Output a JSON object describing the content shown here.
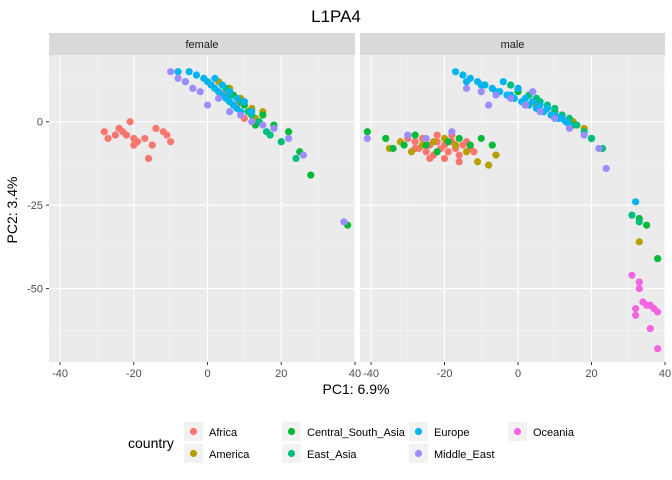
{
  "chart_data": {
    "type": "scatter",
    "title": "L1PA4",
    "xlabel": "PC1: 6.9%",
    "ylabel": "PC2: 3.4%",
    "xlim": [
      -43,
      40
    ],
    "ylim": [
      -72,
      20
    ],
    "x_ticks": [
      -40,
      -20,
      0,
      20,
      40
    ],
    "y_ticks": [
      0,
      -25,
      -50
    ],
    "grid": true,
    "legend_placement": "bottom",
    "legend_title": "country",
    "groups": [
      {
        "name": "Africa",
        "color": "#F8766D"
      },
      {
        "name": "America",
        "color": "#B79F00"
      },
      {
        "name": "Central_South_Asia",
        "color": "#00BA38"
      },
      {
        "name": "East_Asia",
        "color": "#00BF7D"
      },
      {
        "name": "Europe",
        "color": "#00B4F0"
      },
      {
        "name": "Middle_East",
        "color": "#9C8DFF"
      },
      {
        "name": "Oceania",
        "color": "#F564E3"
      }
    ],
    "panels": [
      {
        "label": "female",
        "points": {
          "Africa": [
            [
              -28,
              -3
            ],
            [
              -27,
              -5
            ],
            [
              -25,
              -4
            ],
            [
              -24,
              -2
            ],
            [
              -23,
              -3
            ],
            [
              -22,
              -4
            ],
            [
              -20,
              -5
            ],
            [
              -20,
              -7
            ],
            [
              -19,
              -6
            ],
            [
              -17,
              -5
            ],
            [
              -16,
              -11
            ],
            [
              -15,
              -7
            ],
            [
              -14,
              -2
            ],
            [
              -12,
              -3
            ],
            [
              -11,
              -4
            ],
            [
              -10,
              -6
            ],
            [
              -21,
              0
            ],
            [
              5,
              9
            ],
            [
              8,
              5
            ],
            [
              10,
              1
            ]
          ],
          "America": [
            [
              3,
              12
            ],
            [
              6,
              10
            ],
            [
              9,
              7
            ],
            [
              12,
              4
            ],
            [
              13,
              1
            ],
            [
              15,
              3
            ]
          ],
          "Central_South_Asia": [
            [
              28,
              -16
            ],
            [
              22,
              -3
            ],
            [
              18,
              -1
            ],
            [
              15,
              2
            ],
            [
              10,
              5
            ],
            [
              7,
              8
            ],
            [
              20,
              -6
            ],
            [
              25,
              -9
            ],
            [
              38,
              -31
            ],
            [
              13,
              -1
            ]
          ],
          "East_Asia": [
            [
              20,
              -6
            ],
            [
              17,
              -4
            ],
            [
              14,
              0
            ],
            [
              11,
              3
            ],
            [
              9,
              6
            ],
            [
              6,
              8
            ],
            [
              5,
              10
            ],
            [
              24,
              -11
            ],
            [
              16,
              -3
            ],
            [
              12,
              2
            ]
          ],
          "Europe": [
            [
              -5,
              15
            ],
            [
              -3,
              14
            ],
            [
              -1,
              13
            ],
            [
              0,
              12
            ],
            [
              1,
              11
            ],
            [
              2,
              10
            ],
            [
              3,
              9
            ],
            [
              4,
              8
            ],
            [
              5,
              7
            ],
            [
              6,
              6
            ],
            [
              7,
              5
            ],
            [
              8,
              4
            ],
            [
              9,
              3
            ],
            [
              -6,
              12
            ],
            [
              -8,
              15
            ],
            [
              2,
              13
            ],
            [
              4,
              11
            ],
            [
              6,
              9
            ],
            [
              8,
              7
            ],
            [
              10,
              6
            ],
            [
              12,
              3
            ]
          ],
          "Middle_East": [
            [
              -10,
              15
            ],
            [
              -8,
              13
            ],
            [
              -6,
              12
            ],
            [
              -4,
              10
            ],
            [
              -2,
              9
            ],
            [
              0,
              5
            ],
            [
              3,
              7
            ],
            [
              6,
              3
            ],
            [
              9,
              2
            ],
            [
              12,
              0
            ],
            [
              15,
              -1
            ],
            [
              18,
              -2
            ],
            [
              22,
              -5
            ],
            [
              26,
              -10
            ],
            [
              37,
              -30
            ]
          ],
          "Oceania": []
        }
      },
      {
        "label": "male",
        "points": {
          "Africa": [
            [
              -30,
              -5
            ],
            [
              -28,
              -6
            ],
            [
              -27,
              -8
            ],
            [
              -26,
              -5
            ],
            [
              -25,
              -9
            ],
            [
              -24,
              -7
            ],
            [
              -23,
              -10
            ],
            [
              -22,
              -6
            ],
            [
              -21,
              -8
            ],
            [
              -20,
              -7
            ],
            [
              -19,
              -9
            ],
            [
              -18,
              -6
            ],
            [
              -17,
              -8
            ],
            [
              -16,
              -10
            ],
            [
              -15,
              -7
            ],
            [
              -14,
              -6
            ],
            [
              -13,
              -8
            ],
            [
              -12,
              -9
            ],
            [
              -24,
              -11
            ],
            [
              -20,
              -11
            ],
            [
              -16,
              -12
            ],
            [
              -28,
              -8
            ],
            [
              -22,
              -4
            ],
            [
              -18,
              -4
            ]
          ],
          "America": [
            [
              -35,
              -8
            ],
            [
              -32,
              -6
            ],
            [
              -29,
              -9
            ],
            [
              -26,
              -7
            ],
            [
              -23,
              -6
            ],
            [
              -20,
              -5
            ],
            [
              -17,
              -7
            ],
            [
              -14,
              -9
            ],
            [
              -11,
              -12
            ],
            [
              -8,
              -13
            ],
            [
              -6,
              -10
            ],
            [
              2,
              7
            ],
            [
              5,
              5
            ],
            [
              8,
              4
            ],
            [
              12,
              2
            ],
            [
              15,
              0
            ],
            [
              18,
              -2
            ],
            [
              33,
              -36
            ]
          ],
          "Central_South_Asia": [
            [
              -41,
              -3
            ],
            [
              -36,
              -5
            ],
            [
              -34,
              -8
            ],
            [
              -31,
              -7
            ],
            [
              -28,
              -4
            ],
            [
              -25,
              -7
            ],
            [
              -22,
              -9
            ],
            [
              -19,
              -6
            ],
            [
              -16,
              -5
            ],
            [
              -13,
              -7
            ],
            [
              -10,
              -5
            ],
            [
              -7,
              -7
            ],
            [
              0,
              9
            ],
            [
              5,
              7
            ],
            [
              10,
              3
            ],
            [
              15,
              -1
            ],
            [
              20,
              -5
            ],
            [
              33,
              -29
            ],
            [
              35,
              -31
            ],
            [
              38,
              -41
            ]
          ],
          "East_Asia": [
            [
              0,
              10
            ],
            [
              3,
              8
            ],
            [
              5,
              7
            ],
            [
              8,
              5
            ],
            [
              10,
              4
            ],
            [
              12,
              2
            ],
            [
              14,
              1
            ],
            [
              16,
              -1
            ],
            [
              18,
              -3
            ],
            [
              20,
              -5
            ],
            [
              23,
              -8
            ],
            [
              31,
              -28
            ],
            [
              33,
              -30
            ],
            [
              -2,
              11
            ],
            [
              6,
              6
            ]
          ],
          "Europe": [
            [
              -17,
              15
            ],
            [
              -15,
              14
            ],
            [
              -13,
              13
            ],
            [
              -11,
              12
            ],
            [
              -9,
              11
            ],
            [
              -7,
              10
            ],
            [
              -5,
              9
            ],
            [
              -3,
              8
            ],
            [
              -1,
              7
            ],
            [
              1,
              6
            ],
            [
              3,
              5
            ],
            [
              5,
              4
            ],
            [
              7,
              3
            ],
            [
              9,
              2
            ],
            [
              11,
              1
            ],
            [
              13,
              0
            ],
            [
              -14,
              12
            ],
            [
              -10,
              11
            ],
            [
              -6,
              9
            ],
            [
              -2,
              8
            ],
            [
              2,
              7
            ],
            [
              6,
              5
            ],
            [
              10,
              2
            ],
            [
              14,
              -1
            ],
            [
              32,
              -24
            ],
            [
              -4,
              12
            ],
            [
              0,
              10
            ],
            [
              4,
              6
            ],
            [
              8,
              4
            ],
            [
              12,
              1
            ]
          ],
          "Middle_East": [
            [
              -41,
              -5
            ],
            [
              -30,
              -4
            ],
            [
              -25,
              -5
            ],
            [
              -18,
              -3
            ],
            [
              -14,
              10
            ],
            [
              -10,
              9
            ],
            [
              -6,
              8
            ],
            [
              -2,
              7
            ],
            [
              2,
              5
            ],
            [
              6,
              3
            ],
            [
              10,
              1
            ],
            [
              14,
              -2
            ],
            [
              18,
              -4
            ],
            [
              22,
              -8
            ],
            [
              -8,
              5
            ],
            [
              4,
              9
            ],
            [
              24,
              -14
            ]
          ],
          "Oceania": [
            [
              31,
              -46
            ],
            [
              32,
              -56
            ],
            [
              33,
              -48
            ],
            [
              33,
              -50
            ],
            [
              34,
              -54
            ],
            [
              35,
              -55
            ],
            [
              36,
              -55
            ],
            [
              36,
              -62
            ],
            [
              37,
              -56
            ],
            [
              38,
              -57
            ],
            [
              38,
              -68
            ],
            [
              32,
              -58
            ]
          ]
        }
      }
    ]
  }
}
